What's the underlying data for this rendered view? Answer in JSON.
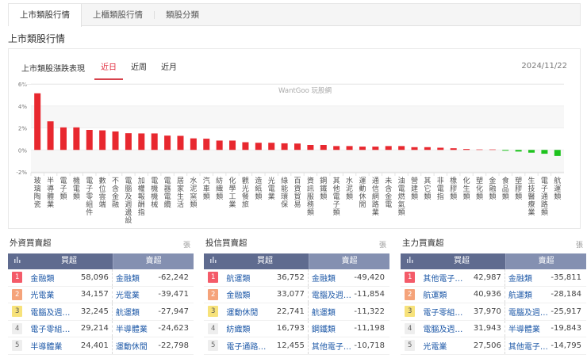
{
  "tabs": [
    {
      "label": "上市類股行情",
      "active": true
    },
    {
      "label": "上櫃類股行情",
      "active": false
    },
    {
      "label": "類股分類",
      "active": false
    }
  ],
  "section_title": "上市類股行情",
  "chart_card": {
    "title": "上市類股漲跌表現",
    "periods": [
      {
        "label": "近日",
        "active": true
      },
      {
        "label": "近周",
        "active": false
      },
      {
        "label": "近月",
        "active": false
      }
    ],
    "date": "2024/11/22",
    "watermark": "WantGoo 玩股網"
  },
  "colors": {
    "up": "#e8282f",
    "down": "#1ec31e",
    "accent": "#e0283a",
    "table_header": "#5f6b8f",
    "table_header_sell": "#8490b1",
    "link": "#1f5aa8"
  },
  "chart_data": {
    "type": "bar",
    "title": "上市類股漲跌表現",
    "xlabel": "",
    "ylabel": "",
    "ylim": [
      -2,
      6
    ],
    "yticks": [
      "6%",
      "4%",
      "2%",
      "0%",
      "-2%"
    ],
    "grid": "alternating bands",
    "legend": "none",
    "categories": [
      "玻璃陶瓷",
      "半導體業",
      "電子類",
      "機電類",
      "電子零組件",
      "數位雲端",
      "不含金融",
      "電腦及週邊設",
      "加權報酬指",
      "電機機械",
      "電器電纜",
      "居家生活",
      "水泥窯類",
      "汽車類",
      "紡織類",
      "化學工業",
      "觀光餐旅",
      "造紙類",
      "光電業",
      "綠能環保",
      "百貨貿易",
      "資訊服務類",
      "鋼鐵類",
      "其他電子類",
      "水泥類",
      "運動休閒",
      "通信網路業",
      "未含金電",
      "油電燃氣類",
      "營建類",
      "其它類",
      "非電指",
      "橡膠類",
      "化生類",
      "塑化類",
      "金融類",
      "食品類",
      "塑膠類",
      "生技醫療業",
      "電子通路類",
      "航運類"
    ],
    "values": [
      5.15,
      2.6,
      2.05,
      2.05,
      1.82,
      1.78,
      1.68,
      1.52,
      1.5,
      1.5,
      1.3,
      1.28,
      1.05,
      1.02,
      0.85,
      0.85,
      0.7,
      0.65,
      0.65,
      0.6,
      0.58,
      0.45,
      0.45,
      0.35,
      0.35,
      0.3,
      0.3,
      0.35,
      0.35,
      0.25,
      0.25,
      0.2,
      0.15,
      0.08,
      0.0,
      0.0,
      -0.05,
      -0.15,
      -0.25,
      -0.35,
      -0.55
    ]
  },
  "tables": [
    {
      "title": "外資買賣超",
      "unit": "張",
      "head_icon": "bar-chart-icon",
      "buy_header": "買超",
      "sell_header": "賣超",
      "rows": [
        {
          "rank": "1",
          "buy_name": "金融類",
          "buy_value": "58,096",
          "sell_name": "金融類",
          "sell_value": "-62,242"
        },
        {
          "rank": "2",
          "buy_name": "光電業",
          "buy_value": "34,157",
          "sell_name": "光電業",
          "sell_value": "-39,471"
        },
        {
          "rank": "3",
          "buy_name": "電腦及週…",
          "buy_value": "32,245",
          "sell_name": "航運類",
          "sell_value": "-27,947"
        },
        {
          "rank": "4",
          "buy_name": "電子零組…",
          "buy_value": "29,214",
          "sell_name": "半導體業",
          "sell_value": "-24,623"
        },
        {
          "rank": "5",
          "buy_name": "半導體業",
          "buy_value": "24,401",
          "sell_name": "運動休閒",
          "sell_value": "-22,798"
        }
      ]
    },
    {
      "title": "投信買賣超",
      "unit": "張",
      "head_icon": "bar-chart-icon",
      "buy_header": "買超",
      "sell_header": "賣超",
      "rows": [
        {
          "rank": "1",
          "buy_name": "航運類",
          "buy_value": "36,752",
          "sell_name": "金融類",
          "sell_value": "-49,420"
        },
        {
          "rank": "2",
          "buy_name": "金融類",
          "buy_value": "33,077",
          "sell_name": "電腦及週…",
          "sell_value": "-11,854"
        },
        {
          "rank": "3",
          "buy_name": "運動休閒",
          "buy_value": "22,741",
          "sell_name": "航運類",
          "sell_value": "-11,322"
        },
        {
          "rank": "4",
          "buy_name": "紡織類",
          "buy_value": "16,793",
          "sell_name": "鋼鐵類",
          "sell_value": "-11,198"
        },
        {
          "rank": "5",
          "buy_name": "電子通路…",
          "buy_value": "12,455",
          "sell_name": "其他電子…",
          "sell_value": "-10,718"
        }
      ]
    },
    {
      "title": "主力買賣超",
      "unit": "張",
      "head_icon": "bar-chart-icon",
      "buy_header": "買超",
      "sell_header": "賣超",
      "rows": [
        {
          "rank": "1",
          "buy_name": "其他電子…",
          "buy_value": "42,987",
          "sell_name": "金融類",
          "sell_value": "-35,811"
        },
        {
          "rank": "2",
          "buy_name": "航運類",
          "buy_value": "40,936",
          "sell_name": "航運類",
          "sell_value": "-28,184"
        },
        {
          "rank": "3",
          "buy_name": "電子零組…",
          "buy_value": "37,970",
          "sell_name": "電腦及週…",
          "sell_value": "-25,917"
        },
        {
          "rank": "4",
          "buy_name": "電腦及週…",
          "buy_value": "31,943",
          "sell_name": "半導體業",
          "sell_value": "-19,843"
        },
        {
          "rank": "5",
          "buy_name": "光電業",
          "buy_value": "27,506",
          "sell_name": "其他電子…",
          "sell_value": "-14,795"
        }
      ]
    }
  ]
}
